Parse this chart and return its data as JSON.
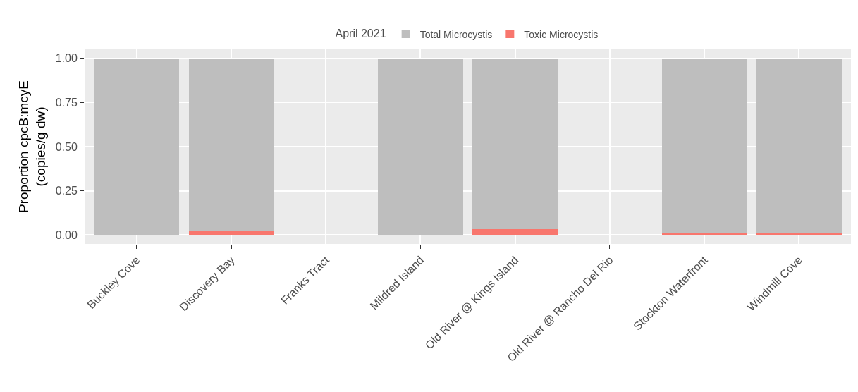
{
  "chart_data": {
    "type": "bar",
    "stacked": true,
    "ylabel": "Proportion cpcB:mcyE\n(copies/g dw)",
    "legend_title": "April 2021",
    "legend": "top",
    "categories": [
      "Buckley Cove",
      "Discovery Bay",
      "Franks Tract",
      "Mildred Island",
      "Old River @ Kings Island",
      "Old River @ Rancho Del Rio",
      "Stockton Waterfront",
      "Windmill Cove"
    ],
    "series": [
      {
        "name": "Toxic Microcystis",
        "color": "#f8766d",
        "values": [
          0,
          0.02,
          0,
          0,
          0.035,
          0,
          0.01,
          0.01
        ]
      },
      {
        "name": "Total Microcystis",
        "color": "#bebebe",
        "values": [
          1,
          0.98,
          0,
          1,
          0.965,
          0,
          0.99,
          0.99
        ]
      }
    ],
    "ylim": [
      -0.05,
      1.05
    ],
    "yticks": [
      {
        "value": 0,
        "label": "0.00"
      },
      {
        "value": 0.25,
        "label": "0.25"
      },
      {
        "value": 0.5,
        "label": "0.50"
      },
      {
        "value": 0.75,
        "label": "0.75"
      },
      {
        "value": 1,
        "label": "1.00"
      }
    ],
    "grid": true
  }
}
